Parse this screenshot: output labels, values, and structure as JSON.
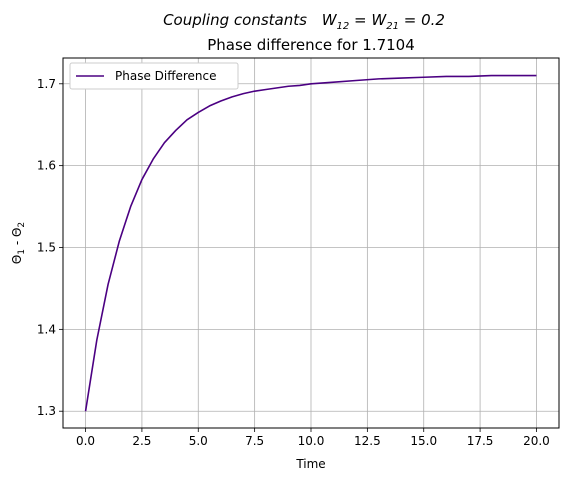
{
  "chart_data": {
    "type": "line",
    "title_prefix": "Coupling constants",
    "title_w12_sub": "12",
    "title_w21_sub": "21",
    "title_value": "0.2",
    "subtitle": "Phase difference for  1.7104",
    "xlabel": "Time",
    "ylabel_theta1_sub": "1",
    "ylabel_theta2_sub": "2",
    "xlim": [
      -1.0,
      21.0
    ],
    "ylim": [
      1.2795,
      1.7315
    ],
    "x_ticks": [
      0.0,
      2.5,
      5.0,
      7.5,
      10.0,
      12.5,
      15.0,
      17.5,
      20.0
    ],
    "x_tick_labels": [
      "0.0",
      "2.5",
      "5.0",
      "7.5",
      "10.0",
      "12.5",
      "15.0",
      "17.5",
      "20.0"
    ],
    "y_ticks": [
      1.3,
      1.4,
      1.5,
      1.6,
      1.7
    ],
    "y_tick_labels": [
      "1.3",
      "1.4",
      "1.5",
      "1.6",
      "1.7"
    ],
    "grid": true,
    "legend_position": "upper-left",
    "series": [
      {
        "name": "Phase Difference",
        "color": "#4b0082",
        "x": [
          0,
          0.5,
          1,
          1.5,
          2,
          2.5,
          3,
          3.5,
          4,
          4.5,
          5,
          5.5,
          6,
          6.5,
          7,
          7.5,
          8,
          8.5,
          9,
          9.5,
          10,
          11,
          12,
          13,
          14,
          15,
          16,
          17,
          18,
          19,
          20
        ],
        "y": [
          1.3,
          1.387,
          1.455,
          1.508,
          1.55,
          1.583,
          1.608,
          1.628,
          1.643,
          1.656,
          1.665,
          1.673,
          1.679,
          1.684,
          1.688,
          1.691,
          1.693,
          1.695,
          1.697,
          1.698,
          1.7,
          1.702,
          1.704,
          1.706,
          1.707,
          1.708,
          1.709,
          1.709,
          1.71,
          1.71,
          1.71
        ]
      }
    ]
  }
}
